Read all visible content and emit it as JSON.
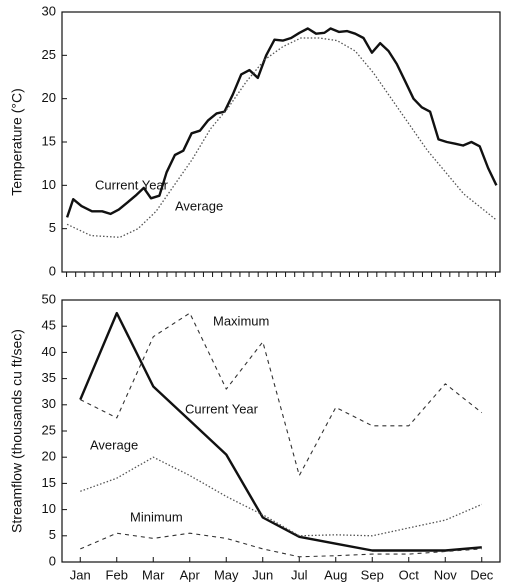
{
  "chart_data": [
    {
      "type": "line",
      "ylabel": "Temperature (°C)",
      "x": [
        0.54,
        0.71,
        0.94,
        1.23,
        1.51,
        1.74,
        1.97,
        2.2,
        2.43,
        2.66,
        2.86,
        3.09,
        3.29,
        3.52,
        3.75,
        3.98,
        4.21,
        4.44,
        4.67,
        4.89,
        5.12,
        5.35,
        5.58,
        5.81,
        6.04,
        6.27,
        6.5,
        6.73,
        6.96,
        7.19,
        7.42,
        7.65,
        7.82,
        8.05,
        8.28,
        8.5,
        8.73,
        8.96,
        9.19,
        9.42,
        9.65,
        9.88,
        10.11,
        10.34,
        10.57,
        10.8,
        11.03,
        11.26,
        11.48,
        11.71,
        11.94,
        12.17,
        12.4
      ],
      "xlim": [
        0.4,
        12.5
      ],
      "ylim": [
        0,
        30
      ],
      "yticks": [
        0,
        5,
        10,
        15,
        20,
        25,
        30
      ],
      "series": [
        {
          "name": "Current Year",
          "color": "#111111",
          "style": "solid",
          "x": null,
          "values": [
            6.3,
            8.4,
            7.6,
            7.0,
            7.0,
            6.7,
            7.2,
            8.0,
            8.8,
            9.7,
            8.5,
            8.8,
            11.5,
            13.5,
            14.0,
            16.0,
            16.3,
            17.5,
            18.3,
            18.5,
            20.5,
            22.8,
            23.3,
            22.4,
            25.0,
            26.8,
            26.7,
            27.0,
            27.6,
            28.1,
            27.5,
            27.6,
            28.1,
            27.7,
            27.8,
            27.5,
            27.0,
            25.3,
            26.4,
            25.5,
            24.0,
            22.0,
            20.0,
            19.0,
            18.5,
            15.3,
            15.0,
            14.8,
            14.6,
            15.0,
            14.5,
            12.0,
            10.0
          ]
        },
        {
          "name": "Average",
          "color": "#555555",
          "style": "dotted",
          "x": [
            0.54,
            1.2,
            2,
            2.5,
            3,
            3.5,
            4,
            4.5,
            5,
            5.5,
            6,
            6.5,
            7,
            7.5,
            8,
            8.5,
            9,
            9.5,
            10,
            10.5,
            11,
            11.5,
            12.4
          ],
          "values": [
            5.5,
            4.2,
            4.0,
            5,
            7,
            10,
            13,
            16.5,
            19,
            22,
            24.5,
            26,
            27,
            27,
            26.7,
            25.5,
            23,
            20,
            17,
            14,
            11.5,
            9,
            6
          ]
        }
      ]
    },
    {
      "type": "line",
      "ylabel": "Streamflow (thousands cu ft/sec)",
      "categories": [
        "Jan",
        "Feb",
        "Mar",
        "Apr",
        "May",
        "Jun",
        "Jul",
        "Aug",
        "Sep",
        "Oct",
        "Nov",
        "Dec"
      ],
      "ylim": [
        0,
        50
      ],
      "yticks": [
        0,
        5,
        10,
        15,
        20,
        25,
        30,
        35,
        40,
        45,
        50
      ],
      "series": [
        {
          "name": "Current Year",
          "color": "#111111",
          "style": "solid",
          "values": [
            31,
            47.5,
            33.5,
            27,
            20.5,
            8.5,
            4.8,
            3.5,
            2.2,
            2.2,
            2.2,
            2.8
          ]
        },
        {
          "name": "Maximum",
          "color": "#333333",
          "style": "dashed",
          "values": [
            31,
            27.5,
            43,
            47.5,
            33,
            42,
            16.5,
            29.5,
            26,
            26,
            34,
            28.5
          ]
        },
        {
          "name": "Average",
          "color": "#555555",
          "style": "dotted",
          "values": [
            13.5,
            16,
            20,
            16.5,
            12.5,
            9,
            5,
            5.2,
            5,
            6.5,
            8,
            11
          ]
        },
        {
          "name": "Minimum",
          "color": "#333333",
          "style": "dashed",
          "values": [
            2.5,
            5.5,
            4.5,
            5.5,
            4.5,
            2.5,
            1,
            1.2,
            1.5,
            1.5,
            2,
            2.5
          ]
        }
      ]
    }
  ]
}
